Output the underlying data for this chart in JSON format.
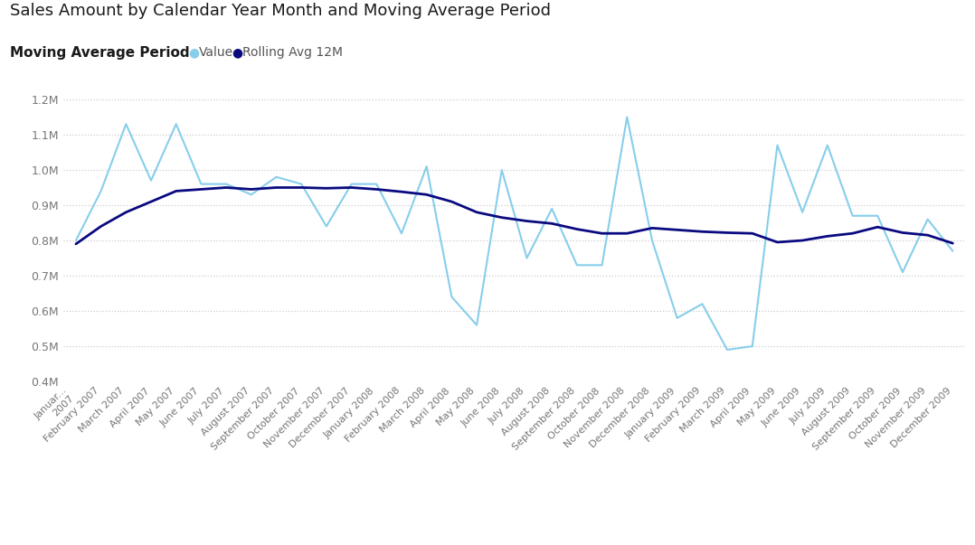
{
  "title": "Sales Amount by Calendar Year Month and Moving Average Period",
  "subtitle": "Moving Average Period",
  "legend_value_label": "Value",
  "legend_rolling_label": "Rolling Avg 12M",
  "value_color": "#87CEEB",
  "rolling_color": "#0A0A80",
  "background_color": "#FFFFFF",
  "ylim_low": 400000,
  "ylim_high": 1250000,
  "yticks": [
    400000,
    500000,
    600000,
    700000,
    800000,
    900000,
    1000000,
    1100000,
    1200000
  ],
  "ytick_labels": [
    "0.4M",
    "0.5M",
    "0.6M",
    "0.7M",
    "0.8M",
    "0.9M",
    "1.0M",
    "1.1M",
    "1.2M"
  ],
  "months": [
    "Januar...\n2007",
    "February 2007",
    "March 2007",
    "April 2007",
    "May 2007",
    "June 2007",
    "July 2007",
    "August 2007",
    "September 2007",
    "October 2007",
    "November 2007",
    "December 2007",
    "January 2008",
    "February 2008",
    "March 2008",
    "April 2008",
    "May 2008",
    "June 2008",
    "July 2008",
    "August 2008",
    "September 2008",
    "October 2008",
    "November 2008",
    "December 2008",
    "January 2009",
    "February 2009",
    "March 2009",
    "April 2009",
    "May 2009",
    "June 2009",
    "July 2009",
    "August 2009",
    "September 2009",
    "October 2009",
    "November 2009",
    "December 2009"
  ],
  "values": [
    800000,
    940000,
    1130000,
    970000,
    1130000,
    960000,
    960000,
    930000,
    980000,
    960000,
    840000,
    960000,
    960000,
    820000,
    1010000,
    640000,
    560000,
    1000000,
    750000,
    890000,
    730000,
    730000,
    1150000,
    800000,
    580000,
    620000,
    490000,
    500000,
    1070000,
    880000,
    1070000,
    870000,
    870000,
    710000,
    860000,
    770000
  ],
  "rolling": [
    790000,
    840000,
    880000,
    910000,
    940000,
    945000,
    950000,
    945000,
    950000,
    950000,
    948000,
    950000,
    945000,
    938000,
    930000,
    910000,
    880000,
    865000,
    855000,
    848000,
    832000,
    820000,
    820000,
    835000,
    830000,
    825000,
    822000,
    820000,
    795000,
    800000,
    812000,
    820000,
    838000,
    822000,
    815000,
    792000
  ],
  "title_fontsize": 13,
  "subtitle_fontsize": 11,
  "legend_fontsize": 10,
  "tick_fontsize": 8,
  "ytick_fontsize": 9,
  "grid_color": "#cccccc",
  "tick_color": "#777777"
}
